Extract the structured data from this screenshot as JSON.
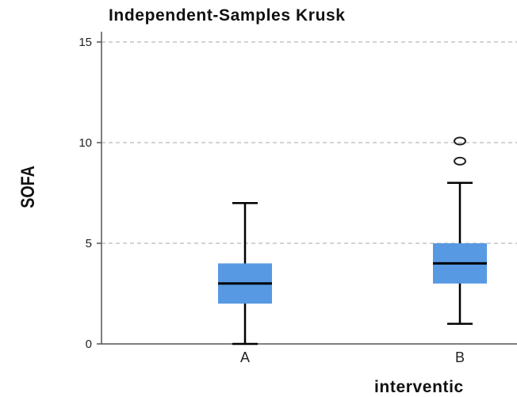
{
  "chart_data": {
    "type": "box",
    "title": "Independent-Samples Krusk",
    "xlabel": "interventic",
    "ylabel": "SOFA",
    "ylim": [
      0,
      15.5
    ],
    "yticks": [
      "0",
      "5",
      "10",
      "15"
    ],
    "grid": true,
    "categories": [
      "A",
      "B"
    ],
    "boxes": [
      {
        "category": "A",
        "min": 0,
        "q1": 2,
        "median": 3,
        "q3": 4,
        "max": 7,
        "outliers": []
      },
      {
        "category": "B",
        "min": 1,
        "q1": 3,
        "median": 4,
        "q3": 5,
        "max": 8,
        "outliers": [
          9,
          10
        ]
      }
    ],
    "colors": {
      "box": "#5799e2",
      "line": "#000000",
      "grid": "#b9b9b9",
      "axis": "#555555"
    }
  }
}
